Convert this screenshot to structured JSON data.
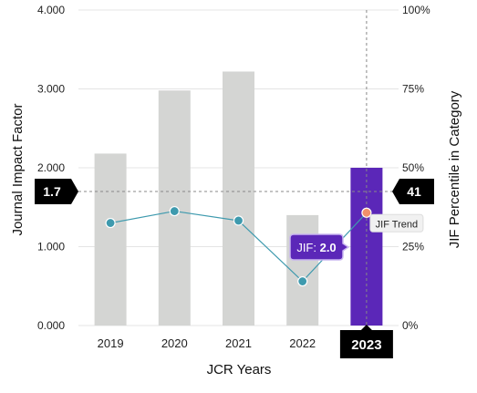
{
  "chart_data": {
    "type": "bar",
    "xlabel": "JCR Years",
    "ylabel": "Journal Impact Factor",
    "y2label": "JIF Percentile in Category",
    "categories": [
      "2019",
      "2020",
      "2021",
      "2022",
      "2023"
    ],
    "ylim": [
      0,
      4
    ],
    "yticks": [
      "0.000",
      "1.000",
      "2.000",
      "3.000",
      "4.000"
    ],
    "y2lim": [
      0,
      100
    ],
    "y2ticks": [
      "0%",
      "25%",
      "50%",
      "75%",
      "100%"
    ],
    "grid": true,
    "series": [
      {
        "values": [
          2.18,
          2.98,
          3.22,
          1.4,
          2.0
        ]
      },
      {
        "name": "JIF Trend",
        "values": [
          1.3,
          1.45,
          1.33,
          0.56,
          1.43
        ]
      }
    ],
    "highlight": {
      "category": "2023",
      "jif_prefix": "JIF: ",
      "jif_value": "2.0",
      "trend_label": "JIF Trend"
    },
    "reference_line": {
      "left_value": 1.7,
      "left_label": "1.7",
      "right_label": "41"
    },
    "colors": {
      "bar": "#d4d5d3",
      "bar_highlight": "#5b27b8",
      "trend_line": "#3e9aae",
      "trend_point": "#3e9aae",
      "trend_point_highlight": "#f0906a",
      "badge_bg": "#000000",
      "badge_text": "#ffffff",
      "grid": "#e4e4e4",
      "ref_line": "#888888"
    }
  }
}
